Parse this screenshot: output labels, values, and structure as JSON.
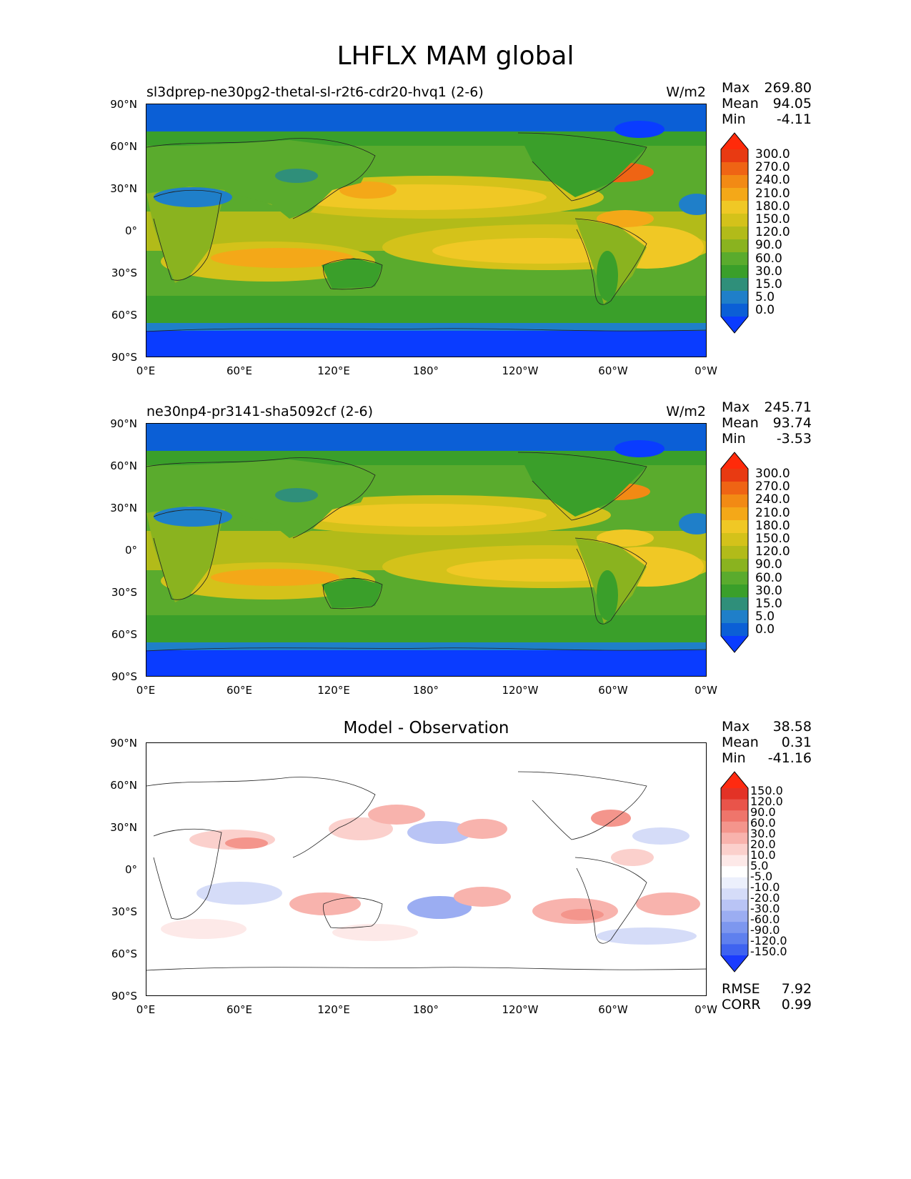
{
  "figure": {
    "title": "LHFLX MAM global",
    "colors": {
      "levels_main": [
        "#0a3cff",
        "#0b5fd6",
        "#1f7fc9",
        "#2f8f7a",
        "#3a9f2a",
        "#5aab2d",
        "#8ab31f",
        "#b2bb19",
        "#d4c21a",
        "#f0c825",
        "#f4a818",
        "#f28a14",
        "#ef6414",
        "#e83a12",
        "#ff2a0a"
      ],
      "levels_diff": [
        "#1a3bff",
        "#3f63f0",
        "#5f80ee",
        "#7d97ef",
        "#9badf2",
        "#b9c4f5",
        "#d5dcf8",
        "#ecf0fc",
        "#ffffff",
        "#fde9e8",
        "#fbd0cc",
        "#f8b3ad",
        "#f4958c",
        "#ef756b",
        "#e9544a",
        "#e33226",
        "#ff2a10"
      ]
    }
  },
  "panels": [
    {
      "title": "sl3dprep-ne30pg2-thetal-sl-r2t6-cdr20-hvq1 (2-6)",
      "units": "W/m2",
      "stats": [
        {
          "label": "Max",
          "value": "269.80"
        },
        {
          "label": "Mean",
          "value": "94.05"
        },
        {
          "label": "Min",
          "value": "-4.11"
        }
      ],
      "colorbar_labels": [
        "300.0",
        "270.0",
        "240.0",
        "210.0",
        "180.0",
        "150.0",
        "120.0",
        "90.0",
        "60.0",
        "30.0",
        "15.0",
        "5.0",
        "0.0"
      ]
    },
    {
      "title": "ne30np4-pr3141-sha5092cf (2-6)",
      "units": "W/m2",
      "stats": [
        {
          "label": "Max",
          "value": "245.71"
        },
        {
          "label": "Mean",
          "value": "93.74"
        },
        {
          "label": "Min",
          "value": "-3.53"
        }
      ],
      "colorbar_labels": [
        "300.0",
        "270.0",
        "240.0",
        "210.0",
        "180.0",
        "150.0",
        "120.0",
        "90.0",
        "60.0",
        "30.0",
        "15.0",
        "5.0",
        "0.0"
      ]
    },
    {
      "title": "Model - Observation",
      "units": "",
      "stats": [
        {
          "label": "Max",
          "value": "38.58"
        },
        {
          "label": "Mean",
          "value": "0.31"
        },
        {
          "label": "Min",
          "value": "-41.16"
        }
      ],
      "colorbar_labels": [
        "150.0",
        "120.0",
        "90.0",
        "60.0",
        "30.0",
        "20.0",
        "10.0",
        "5.0",
        "-5.0",
        "-10.0",
        "-20.0",
        "-30.0",
        "-60.0",
        "-90.0",
        "-120.0",
        "-150.0"
      ],
      "metrics": [
        {
          "label": "RMSE",
          "value": "7.92"
        },
        {
          "label": "CORR",
          "value": "0.99"
        }
      ]
    }
  ],
  "axes": {
    "lat_ticks": [
      "90°N",
      "60°N",
      "30°N",
      "0°",
      "30°S",
      "60°S",
      "90°S"
    ],
    "lon_ticks": [
      "0°E",
      "60°E",
      "120°E",
      "180°",
      "120°W",
      "60°W",
      "0°W"
    ]
  }
}
